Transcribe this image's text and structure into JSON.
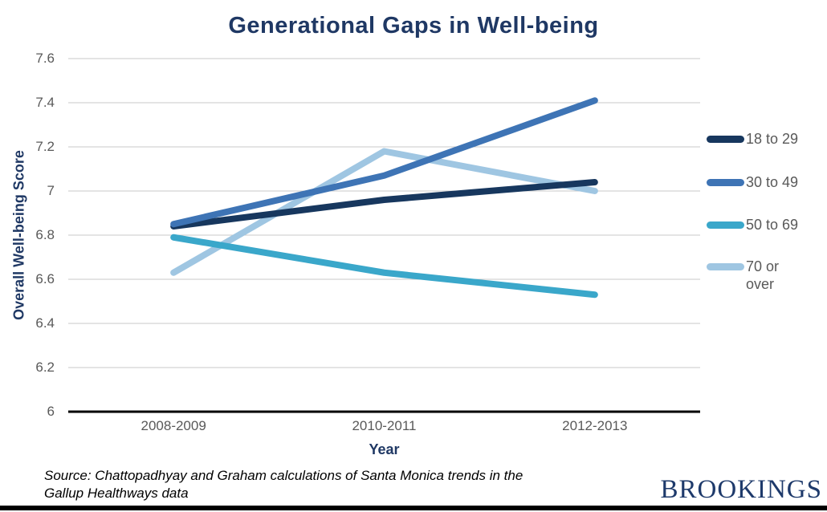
{
  "title": "Generational Gaps in Well-being",
  "chart_data": {
    "type": "line",
    "categories": [
      "2008-2009",
      "2010-2011",
      "2012-2013"
    ],
    "series": [
      {
        "name": "18 to 29",
        "color": "#17375E",
        "values": [
          6.84,
          6.96,
          7.04
        ]
      },
      {
        "name": "30 to 49",
        "color": "#3E74B5",
        "values": [
          6.85,
          7.07,
          7.41
        ]
      },
      {
        "name": "50 to 69",
        "color": "#3AA7CA",
        "values": [
          6.79,
          6.63,
          6.53
        ]
      },
      {
        "name": "70 or over",
        "color": "#9FC6E2",
        "values": [
          6.63,
          7.18,
          7.0
        ]
      }
    ],
    "draw_order": [
      3,
      2,
      0,
      1
    ],
    "xlabel": "Year",
    "ylabel": "Overall Well-being Score",
    "ylim": [
      6,
      7.6
    ],
    "ytick_step": 0.2,
    "grid": true,
    "legend_position": "right"
  },
  "footer": {
    "source": "Source: Chattopadhyay and Graham calculations of Santa Monica trends in the Gallup Healthways data",
    "logo": "BROOKINGS"
  },
  "colors": {
    "title": "#1F3864",
    "axis_label": "#1F3864",
    "tick_label": "#595959",
    "legend_label": "#595959",
    "gridline": "#C9C9C9",
    "axis_line": "#000000",
    "logo": "#1E3A6B"
  }
}
